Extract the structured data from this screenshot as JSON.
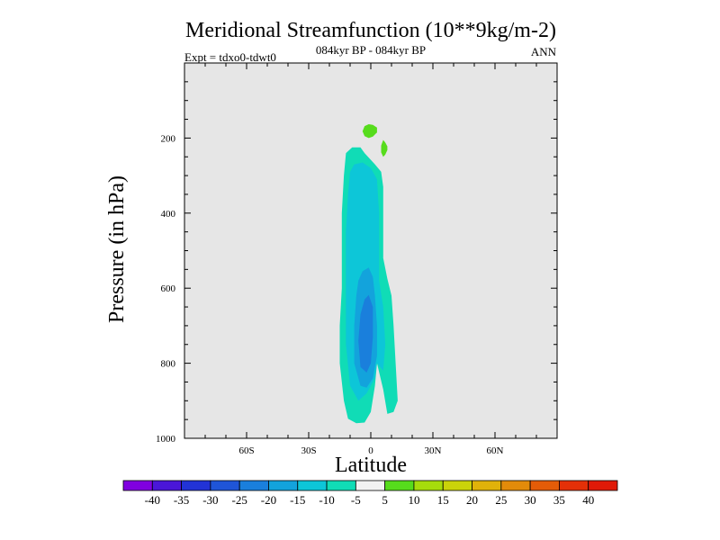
{
  "chart_data": {
    "type": "heatmap",
    "title": "Meridional Streamfunction (10**9kg/m-2)",
    "subtitle": "084kyr BP - 084kyr BP",
    "left_label": "Expt = tdxo0-tdwt0",
    "right_label": "ANN",
    "xlabel": "Latitude",
    "ylabel": "Pressure (in hPa)",
    "xlim": [
      -90,
      90
    ],
    "ylim": [
      1000,
      0
    ],
    "x_ticks": [
      {
        "value": -60,
        "label": "60S"
      },
      {
        "value": -30,
        "label": "30S"
      },
      {
        "value": 0,
        "label": "0"
      },
      {
        "value": 30,
        "label": "30N"
      },
      {
        "value": 60,
        "label": "60N"
      }
    ],
    "y_ticks": [
      {
        "value": 200,
        "label": "200"
      },
      {
        "value": 400,
        "label": "400"
      },
      {
        "value": 600,
        "label": "600"
      },
      {
        "value": 800,
        "label": "800"
      },
      {
        "value": 1000,
        "label": "1000"
      }
    ],
    "background_color": "#e6e6e6",
    "colorbar": {
      "labels": [
        "-40",
        "-35",
        "-30",
        "-25",
        "-20",
        "-15",
        "-10",
        "-5",
        "5",
        "10",
        "15",
        "20",
        "25",
        "30",
        "35",
        "40"
      ],
      "colors": [
        "#8000e0",
        "#4a16d8",
        "#2233d6",
        "#1f55d8",
        "#1a7fdc",
        "#13a3dc",
        "#0dc6d8",
        "#10dcb6",
        "#f2f2f2",
        "#56dc1c",
        "#a6dc0c",
        "#cad30a",
        "#e0b20a",
        "#e28b0a",
        "#e45c08",
        "#e43008",
        "#e01a08"
      ]
    },
    "regions": [
      {
        "name": "weak-negative-region",
        "range": "-10 to -5",
        "color": "#10dcb6",
        "outline": [
          [
            -9,
            225
          ],
          [
            -5,
            225
          ],
          [
            -3,
            240
          ],
          [
            2,
            270
          ],
          [
            5,
            290
          ],
          [
            6,
            330
          ],
          [
            6,
            420
          ],
          [
            6,
            520
          ],
          [
            8,
            575
          ],
          [
            10,
            620
          ],
          [
            11,
            700
          ],
          [
            12,
            800
          ],
          [
            13,
            900
          ],
          [
            11,
            930
          ],
          [
            8,
            935
          ],
          [
            6,
            870
          ],
          [
            3,
            800
          ],
          [
            2,
            860
          ],
          [
            0,
            930
          ],
          [
            -3,
            958
          ],
          [
            -7,
            960
          ],
          [
            -11,
            948
          ],
          [
            -13,
            900
          ],
          [
            -15,
            800
          ],
          [
            -15,
            700
          ],
          [
            -14,
            600
          ],
          [
            -14,
            500
          ],
          [
            -14,
            400
          ],
          [
            -13,
            300
          ],
          [
            -12,
            240
          ]
        ]
      },
      {
        "name": "moderate-negative-region",
        "range": "-15 to -10",
        "color": "#0dc6d8",
        "outline": [
          [
            -8,
            270
          ],
          [
            -4,
            265
          ],
          [
            0,
            280
          ],
          [
            3,
            310
          ],
          [
            4,
            400
          ],
          [
            4,
            500
          ],
          [
            4,
            580
          ],
          [
            6,
            650
          ],
          [
            7,
            750
          ],
          [
            6,
            820
          ],
          [
            3,
            800
          ],
          [
            2,
            840
          ],
          [
            -2,
            880
          ],
          [
            -6,
            900
          ],
          [
            -10,
            860
          ],
          [
            -12,
            750
          ],
          [
            -12,
            650
          ],
          [
            -12,
            550
          ],
          [
            -12,
            450
          ],
          [
            -11,
            350
          ],
          [
            -10,
            290
          ]
        ]
      },
      {
        "name": "strong-negative-region",
        "range": "-20 to -15",
        "color": "#13a3dc",
        "outline": [
          [
            -4,
            555
          ],
          [
            -1,
            545
          ],
          [
            1,
            570
          ],
          [
            2,
            620
          ],
          [
            3,
            700
          ],
          [
            3,
            780
          ],
          [
            1,
            840
          ],
          [
            -2,
            865
          ],
          [
            -5,
            860
          ],
          [
            -8,
            800
          ],
          [
            -8,
            700
          ],
          [
            -7,
            620
          ],
          [
            -6,
            580
          ]
        ]
      },
      {
        "name": "core-negative-region",
        "range": "-25 to -20",
        "color": "#1a7fdc",
        "outline": [
          [
            -3,
            630
          ],
          [
            -1,
            618
          ],
          [
            1,
            650
          ],
          [
            1,
            730
          ],
          [
            0,
            800
          ],
          [
            -2,
            825
          ],
          [
            -5,
            810
          ],
          [
            -6,
            740
          ],
          [
            -5,
            670
          ]
        ]
      },
      {
        "name": "positive-cell-upper",
        "range": "5 to 10",
        "color": "#56dc1c",
        "outline": [
          [
            -3,
            168
          ],
          [
            -1,
            163
          ],
          [
            1,
            165
          ],
          [
            3,
            172
          ],
          [
            3,
            185
          ],
          [
            1,
            196
          ],
          [
            -1,
            200
          ],
          [
            -3,
            195
          ],
          [
            -4,
            182
          ]
        ]
      },
      {
        "name": "positive-cell-lower",
        "range": "5 to 10",
        "color": "#56dc1c",
        "outline": [
          [
            6,
            205
          ],
          [
            7,
            212
          ],
          [
            8,
            222
          ],
          [
            8,
            232
          ],
          [
            7,
            244
          ],
          [
            6,
            250
          ],
          [
            5,
            238
          ],
          [
            5,
            220
          ]
        ]
      }
    ]
  }
}
